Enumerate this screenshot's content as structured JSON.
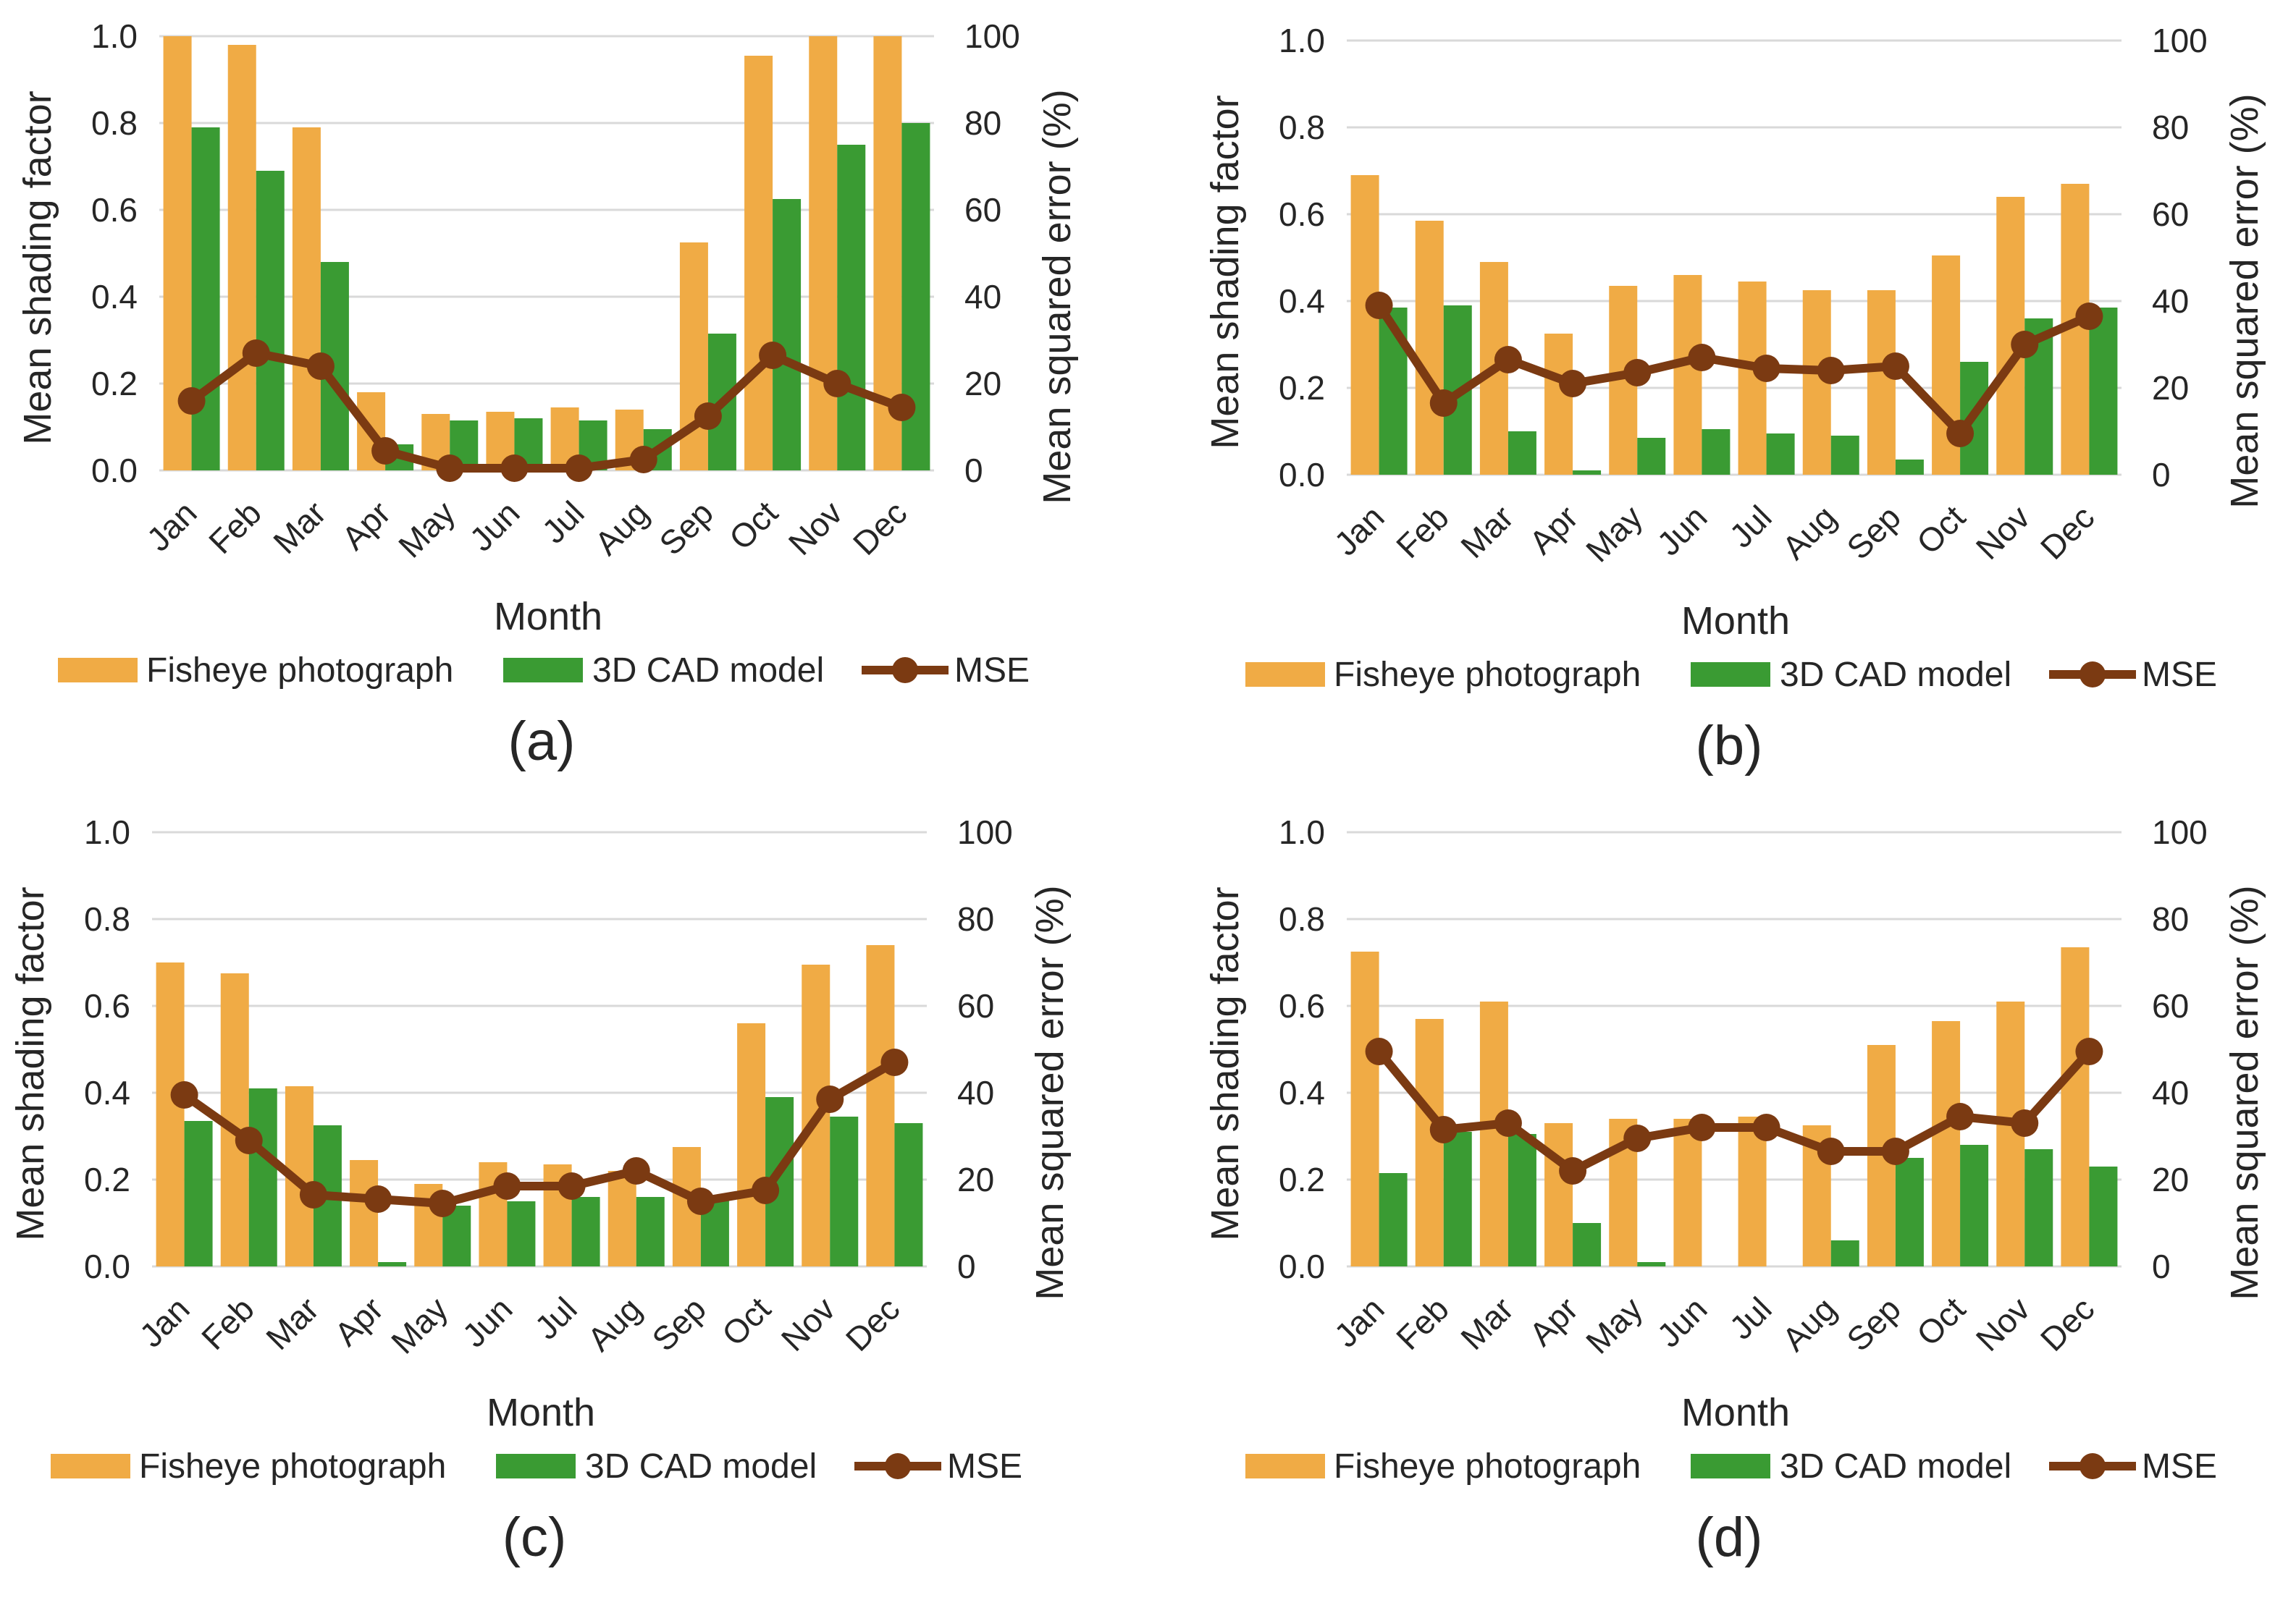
{
  "colors": {
    "fisheye": "#f0ab45",
    "cad": "#3a9b33",
    "mse": "#7b3a12",
    "grid": "#d9d9d9",
    "text": "#262626"
  },
  "chart_data": [
    {
      "type": "bar",
      "panel_label": "(a)",
      "categories": [
        "Jan",
        "Feb",
        "Mar",
        "Apr",
        "May",
        "Jun",
        "Jul",
        "Aug",
        "Sep",
        "Oct",
        "Nov",
        "Dec"
      ],
      "xlabel": "Month",
      "ylabel": "Mean shading factor",
      "y2label": "Mean squared error (%)",
      "ylim": [
        0,
        1
      ],
      "y2lim": [
        0,
        100
      ],
      "yticks": [
        "0.0",
        "0.2",
        "0.4",
        "0.6",
        "0.8",
        "1.0"
      ],
      "y2ticks": [
        "0",
        "20",
        "40",
        "60",
        "80",
        "100"
      ],
      "legend": [
        "Fisheye photograph",
        "3D CAD model",
        "MSE"
      ],
      "series": [
        {
          "name": "Fisheye photograph",
          "axis": "left",
          "kind": "bar",
          "values": [
            1.0,
            0.98,
            0.79,
            0.18,
            0.13,
            0.135,
            0.145,
            0.14,
            0.525,
            0.955,
            1.0,
            1.0
          ]
        },
        {
          "name": "3D CAD model",
          "axis": "left",
          "kind": "bar",
          "values": [
            0.79,
            0.69,
            0.48,
            0.06,
            0.115,
            0.12,
            0.115,
            0.095,
            0.315,
            0.625,
            0.75,
            0.8
          ]
        },
        {
          "name": "MSE",
          "axis": "right",
          "kind": "line",
          "values": [
            16,
            27,
            24,
            4.5,
            0.5,
            0.5,
            0.5,
            2.5,
            12.5,
            26.5,
            20,
            14.5
          ]
        }
      ]
    },
    {
      "type": "bar",
      "panel_label": "(b)",
      "categories": [
        "Jan",
        "Feb",
        "Mar",
        "Apr",
        "May",
        "Jun",
        "Jul",
        "Aug",
        "Sep",
        "Oct",
        "Nov",
        "Dec"
      ],
      "xlabel": "Month",
      "ylabel": "Mean shading factor",
      "y2label": "Mean squared error (%)",
      "ylim": [
        0,
        1
      ],
      "y2lim": [
        0,
        100
      ],
      "yticks": [
        "0.0",
        "0.2",
        "0.4",
        "0.6",
        "0.8",
        "1.0"
      ],
      "y2ticks": [
        "0",
        "20",
        "40",
        "60",
        "80",
        "100"
      ],
      "legend": [
        "Fisheye photograph",
        "3D CAD model",
        "MSE"
      ],
      "series": [
        {
          "name": "Fisheye photograph",
          "axis": "left",
          "kind": "bar",
          "values": [
            0.69,
            0.585,
            0.49,
            0.325,
            0.435,
            0.46,
            0.445,
            0.425,
            0.425,
            0.505,
            0.64,
            0.67
          ]
        },
        {
          "name": "3D CAD model",
          "axis": "left",
          "kind": "bar",
          "values": [
            0.385,
            0.39,
            0.1,
            0.01,
            0.085,
            0.105,
            0.095,
            0.09,
            0.035,
            0.26,
            0.36,
            0.385
          ]
        },
        {
          "name": "MSE",
          "axis": "right",
          "kind": "line",
          "values": [
            39,
            16.5,
            26.5,
            21,
            23.5,
            27,
            24.5,
            24,
            25,
            9.5,
            30,
            36.5
          ]
        }
      ]
    },
    {
      "type": "bar",
      "panel_label": "(c)",
      "categories": [
        "Jan",
        "Feb",
        "Mar",
        "Apr",
        "May",
        "Jun",
        "Jul",
        "Aug",
        "Sep",
        "Oct",
        "Nov",
        "Dec"
      ],
      "xlabel": "Month",
      "ylabel": "Mean shading factor",
      "y2label": "Mean squared error (%)",
      "ylim": [
        0,
        1
      ],
      "y2lim": [
        0,
        100
      ],
      "yticks": [
        "0.0",
        "0.2",
        "0.4",
        "0.6",
        "0.8",
        "1.0"
      ],
      "y2ticks": [
        "0",
        "20",
        "40",
        "60",
        "80",
        "100"
      ],
      "legend": [
        "Fisheye photograph",
        "3D CAD model",
        "MSE"
      ],
      "series": [
        {
          "name": "Fisheye photograph",
          "axis": "left",
          "kind": "bar",
          "values": [
            0.7,
            0.675,
            0.415,
            0.245,
            0.19,
            0.24,
            0.235,
            0.22,
            0.275,
            0.56,
            0.695,
            0.74
          ]
        },
        {
          "name": "3D CAD model",
          "axis": "left",
          "kind": "bar",
          "values": [
            0.335,
            0.41,
            0.325,
            0.01,
            0.14,
            0.15,
            0.16,
            0.16,
            0.16,
            0.39,
            0.345,
            0.33
          ]
        },
        {
          "name": "MSE",
          "axis": "right",
          "kind": "line",
          "values": [
            39.5,
            29,
            16.5,
            15.5,
            14.5,
            18.5,
            18.5,
            22,
            15,
            17.5,
            38.5,
            47
          ]
        }
      ]
    },
    {
      "type": "bar",
      "panel_label": "(d)",
      "categories": [
        "Jan",
        "Feb",
        "Mar",
        "Apr",
        "May",
        "Jun",
        "Jul",
        "Aug",
        "Sep",
        "Oct",
        "Nov",
        "Dec"
      ],
      "xlabel": "Month",
      "ylabel": "Mean shading factor",
      "y2label": "Mean squared error (%)",
      "ylim": [
        0,
        1
      ],
      "y2lim": [
        0,
        100
      ],
      "yticks": [
        "0.0",
        "0.2",
        "0.4",
        "0.6",
        "0.8",
        "1.0"
      ],
      "y2ticks": [
        "0",
        "20",
        "40",
        "60",
        "80",
        "100"
      ],
      "legend": [
        "Fisheye photograph",
        "3D CAD model",
        "MSE"
      ],
      "series": [
        {
          "name": "Fisheye photograph",
          "axis": "left",
          "kind": "bar",
          "values": [
            0.725,
            0.57,
            0.61,
            0.33,
            0.34,
            0.34,
            0.345,
            0.325,
            0.51,
            0.565,
            0.61,
            0.735
          ]
        },
        {
          "name": "3D CAD model",
          "axis": "left",
          "kind": "bar",
          "values": [
            0.215,
            0.31,
            0.305,
            0.1,
            0.01,
            0.0,
            0.0,
            0.06,
            0.25,
            0.28,
            0.27,
            0.23
          ]
        },
        {
          "name": "MSE",
          "axis": "right",
          "kind": "line",
          "values": [
            49.5,
            31.5,
            33,
            22,
            29.5,
            32,
            32,
            26.5,
            26.5,
            34.5,
            33,
            49.5
          ]
        }
      ]
    }
  ]
}
